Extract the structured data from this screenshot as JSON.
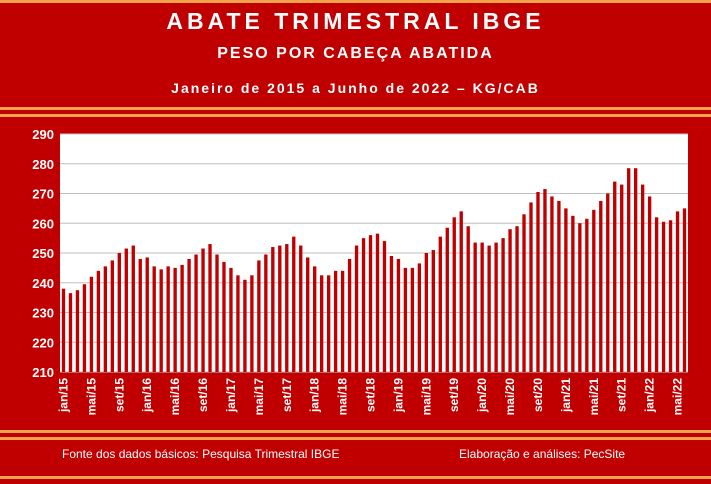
{
  "header": {
    "title": "ABATE TRIMESTRAL IBGE",
    "subtitle": "PESO POR CABEÇA ABATIDA",
    "period": "Janeiro de 2015 a Junho de 2022 – KG/CAB"
  },
  "footer": {
    "source": "Fonte dos dados básicos: Pesquisa Trimestral IBGE",
    "credit": "Elaboração e análises: PecSite"
  },
  "colors": {
    "background": "#c00000",
    "bar": "#c00000",
    "plot_bg": "#ffffff",
    "stripe": "#f2a34a"
  },
  "chart_data": {
    "type": "bar",
    "ylim": [
      210,
      290
    ],
    "yticks": [
      210,
      220,
      230,
      240,
      250,
      260,
      270,
      280,
      290
    ],
    "grid": true,
    "x_tick_labels": [
      "jan/15",
      "mai/15",
      "set/15",
      "jan/16",
      "mai/16",
      "set/16",
      "jan/17",
      "mai/17",
      "set/17",
      "jan/18",
      "mai/18",
      "set/18",
      "jan/19",
      "mai/19",
      "set/19",
      "jan/20",
      "mai/20",
      "set/20",
      "jan/21",
      "mai/21",
      "set/21",
      "jan/22",
      "mai/22"
    ],
    "x_tick_every": 4,
    "values": [
      238,
      236.5,
      237.5,
      239.5,
      242,
      244,
      245.5,
      247.5,
      250,
      251.5,
      252.5,
      248,
      248.5,
      245.5,
      244.5,
      245.5,
      245,
      246,
      248,
      249.5,
      251.5,
      253,
      249.5,
      247,
      245,
      242.5,
      241,
      242.5,
      247.5,
      249.5,
      252,
      252.5,
      253,
      255.5,
      252.5,
      248.5,
      245.5,
      242.5,
      242.5,
      244,
      244,
      248,
      252.5,
      255,
      256,
      256.5,
      254,
      249,
      248,
      245,
      245,
      246.5,
      250,
      251,
      255.5,
      258.5,
      262,
      264,
      259,
      253.5,
      253.5,
      252.5,
      253.5,
      255,
      258,
      259,
      263,
      267,
      270.5,
      271.5,
      269,
      267.5,
      265,
      262.5,
      260,
      261.5,
      264.5,
      267.5,
      270,
      274,
      273,
      278.5,
      278.5,
      273,
      269,
      262,
      260.5,
      261,
      264,
      265
    ]
  }
}
